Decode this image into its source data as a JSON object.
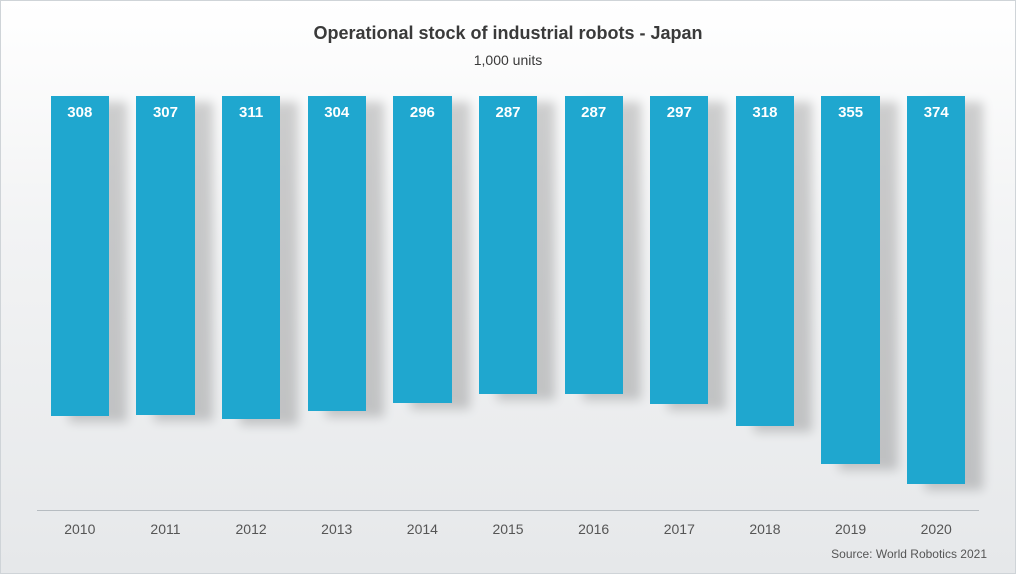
{
  "chart": {
    "type": "bar",
    "title": "Operational stock of industrial robots - Japan",
    "subtitle": "1,000 units",
    "source": "Source: World Robotics 2021",
    "categories": [
      "2010",
      "2011",
      "2012",
      "2013",
      "2014",
      "2015",
      "2016",
      "2017",
      "2018",
      "2019",
      "2020"
    ],
    "values": [
      308,
      307,
      311,
      304,
      296,
      287,
      287,
      297,
      318,
      355,
      374
    ],
    "ylim": [
      0,
      400
    ],
    "bar_color": "#1fa7cf",
    "bar_width_pct": 68,
    "value_label_color": "#ffffff",
    "value_label_fontsize": 15,
    "value_label_fontweight": 600,
    "title_fontsize": 18,
    "title_color": "#3a3a3a",
    "subtitle_fontsize": 14,
    "subtitle_color": "#3a3a3a",
    "xlabel_fontsize": 14,
    "xlabel_color": "#555555",
    "source_fontsize": 12,
    "source_color": "#555555",
    "background_gradient_top": "#ffffff",
    "background_gradient_bottom": "#e6e8ea",
    "baseline_color": "#b6bcc1",
    "shadow_color": "rgba(0,0,0,0.18)",
    "frame_border_color": "#cfd4d8"
  }
}
